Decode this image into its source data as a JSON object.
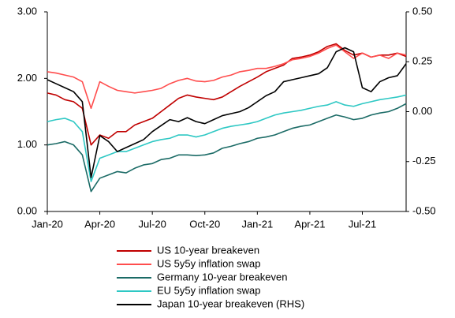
{
  "chart_data": {
    "type": "line",
    "categories": [
      "Jan-20",
      null,
      null,
      null,
      null,
      null,
      "Apr-20",
      null,
      null,
      null,
      null,
      null,
      "Jul-20",
      null,
      null,
      null,
      null,
      null,
      "Oct-20",
      null,
      null,
      null,
      null,
      null,
      "Jan-21",
      null,
      null,
      null,
      null,
      null,
      "Apr-21",
      null,
      null,
      null,
      null,
      null,
      "Jul-21",
      null,
      null,
      null,
      null,
      null
    ],
    "series": [
      {
        "name": "US 10-year breakeven",
        "color": "#c00000",
        "values": [
          1.78,
          1.75,
          1.68,
          1.65,
          1.55,
          1.0,
          1.15,
          1.1,
          1.2,
          1.2,
          1.3,
          1.35,
          1.4,
          1.5,
          1.6,
          1.7,
          1.75,
          1.72,
          1.7,
          1.68,
          1.72,
          1.8,
          1.88,
          1.95,
          2.02,
          2.1,
          2.15,
          2.2,
          2.3,
          2.32,
          2.35,
          2.4,
          2.48,
          2.52,
          2.42,
          2.35,
          2.38,
          2.32,
          2.35,
          2.35,
          2.38,
          2.33
        ]
      },
      {
        "name": "US 5y5y inflation swap",
        "color": "#ff4d4d",
        "values": [
          2.1,
          2.08,
          2.05,
          2.02,
          1.95,
          1.55,
          1.95,
          1.88,
          1.82,
          1.8,
          1.78,
          1.8,
          1.82,
          1.85,
          1.92,
          1.97,
          2.0,
          1.96,
          1.95,
          1.97,
          2.02,
          2.05,
          2.1,
          2.12,
          2.15,
          2.15,
          2.18,
          2.22,
          2.28,
          2.3,
          2.33,
          2.38,
          2.45,
          2.5,
          2.4,
          2.3,
          2.38,
          2.32,
          2.35,
          2.3,
          2.38,
          2.35
        ]
      },
      {
        "name": "Germany 10-year breakeven",
        "color": "#1b6b66",
        "values": [
          1.0,
          1.02,
          1.05,
          1.0,
          0.85,
          0.3,
          0.5,
          0.55,
          0.6,
          0.58,
          0.65,
          0.7,
          0.72,
          0.78,
          0.8,
          0.85,
          0.85,
          0.84,
          0.85,
          0.88,
          0.95,
          0.98,
          1.02,
          1.05,
          1.1,
          1.12,
          1.15,
          1.2,
          1.25,
          1.28,
          1.3,
          1.35,
          1.4,
          1.45,
          1.42,
          1.38,
          1.4,
          1.45,
          1.48,
          1.5,
          1.55,
          1.62
        ]
      },
      {
        "name": "EU 5y5y inflation swap",
        "color": "#2ec8c4",
        "values": [
          1.35,
          1.38,
          1.4,
          1.35,
          1.2,
          0.45,
          0.8,
          0.85,
          0.9,
          0.9,
          0.95,
          1.0,
          1.05,
          1.08,
          1.1,
          1.15,
          1.15,
          1.12,
          1.15,
          1.2,
          1.25,
          1.28,
          1.3,
          1.32,
          1.35,
          1.4,
          1.45,
          1.48,
          1.5,
          1.52,
          1.55,
          1.58,
          1.6,
          1.65,
          1.6,
          1.58,
          1.62,
          1.65,
          1.68,
          1.7,
          1.72,
          1.75
        ]
      },
      {
        "name": "Japan 10-year breakeven (RHS)",
        "color": "#000000",
        "axis": "y2",
        "values": [
          0.16,
          0.14,
          0.12,
          0.1,
          0.05,
          -0.33,
          -0.12,
          -0.15,
          -0.2,
          -0.18,
          -0.16,
          -0.14,
          -0.1,
          -0.07,
          -0.04,
          -0.05,
          -0.03,
          -0.05,
          -0.06,
          -0.04,
          -0.02,
          -0.01,
          0.0,
          0.02,
          0.05,
          0.08,
          0.1,
          0.15,
          0.16,
          0.17,
          0.18,
          0.19,
          0.22,
          0.3,
          0.32,
          0.3,
          0.12,
          0.1,
          0.15,
          0.17,
          0.18,
          0.24
        ]
      }
    ],
    "ylim": [
      0,
      3
    ],
    "yticks": [
      {
        "value": 0,
        "label": "0.00"
      },
      {
        "value": 1,
        "label": "1.00"
      },
      {
        "value": 2,
        "label": "2.00"
      },
      {
        "value": 3,
        "label": "3.00"
      }
    ],
    "y2lim": [
      -0.5,
      0.5
    ],
    "y2ticks": [
      {
        "value": -0.5,
        "label": "-0.50"
      },
      {
        "value": -0.25,
        "label": "-0.25"
      },
      {
        "value": 0,
        "label": "0.00"
      },
      {
        "value": 0.25,
        "label": "0.25"
      },
      {
        "value": 0.5,
        "label": "0.50"
      }
    ],
    "legend": "bottom"
  }
}
